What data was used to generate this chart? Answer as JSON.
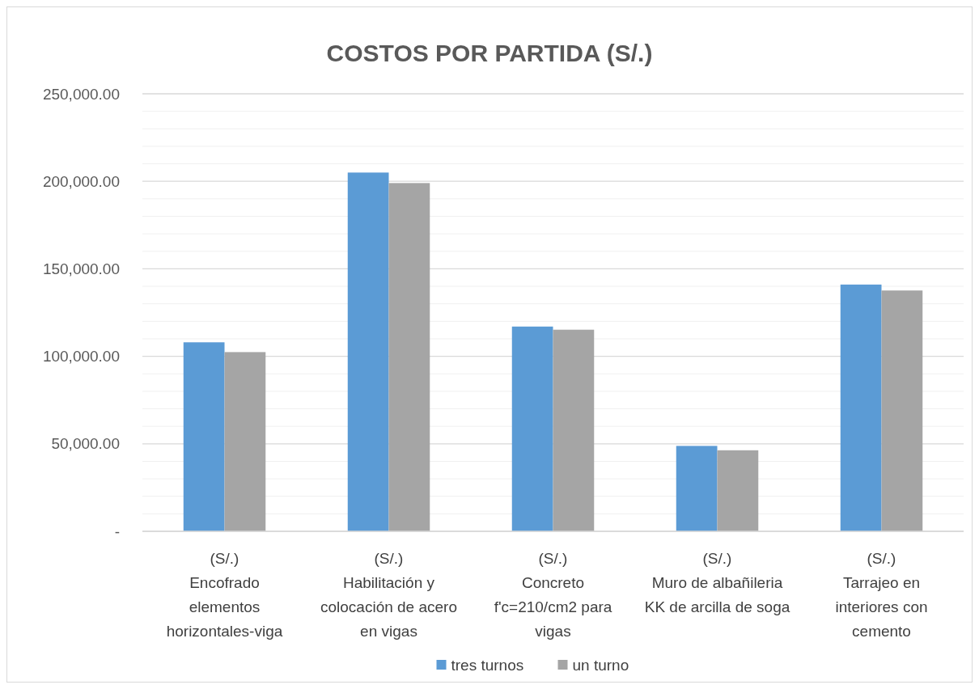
{
  "chart_data": {
    "type": "bar",
    "title": "COSTOS POR PARTIDA (S/.)",
    "categories": [
      "(S/.)\nEncofrado\nelementos\nhorizontales-viga",
      "(S/.)\nHabilitación y\ncolocación de acero\nen vigas",
      "(S/.)\nConcreto\nf'c=210/cm2 para\nvigas",
      "(S/.)\nMuro de albañileria\nKK de arcilla de soga",
      "(S/.)\nTarrajeo en\ninteriores con\ncemento"
    ],
    "series": [
      {
        "name": "tres turnos",
        "color": "#5b9bd5",
        "values": [
          108000,
          205000,
          117000,
          48800,
          141000
        ]
      },
      {
        "name": "un turno",
        "color": "#a5a5a5",
        "values": [
          102400,
          199000,
          115200,
          46300,
          137600
        ]
      }
    ],
    "ylim": [
      0,
      250000
    ],
    "yticks": [
      {
        "value": 0,
        "label": "-"
      },
      {
        "value": 10000,
        "label": null
      },
      {
        "value": 20000,
        "label": null
      },
      {
        "value": 30000,
        "label": null
      },
      {
        "value": 40000,
        "label": null
      },
      {
        "value": 50000,
        "label": "50,000.00"
      },
      {
        "value": 60000,
        "label": null
      },
      {
        "value": 70000,
        "label": null
      },
      {
        "value": 80000,
        "label": null
      },
      {
        "value": 90000,
        "label": null
      },
      {
        "value": 100000,
        "label": "100,000.00"
      },
      {
        "value": 110000,
        "label": null
      },
      {
        "value": 120000,
        "label": null
      },
      {
        "value": 130000,
        "label": null
      },
      {
        "value": 140000,
        "label": null
      },
      {
        "value": 150000,
        "label": "150,000.00"
      },
      {
        "value": 160000,
        "label": null
      },
      {
        "value": 170000,
        "label": null
      },
      {
        "value": 180000,
        "label": null
      },
      {
        "value": 190000,
        "label": null
      },
      {
        "value": 200000,
        "label": "200,000.00"
      },
      {
        "value": 210000,
        "label": null
      },
      {
        "value": 220000,
        "label": null
      },
      {
        "value": 230000,
        "label": null
      },
      {
        "value": 240000,
        "label": null
      },
      {
        "value": 250000,
        "label": "250,000.00"
      }
    ],
    "grid": true,
    "legend": "bottom"
  }
}
